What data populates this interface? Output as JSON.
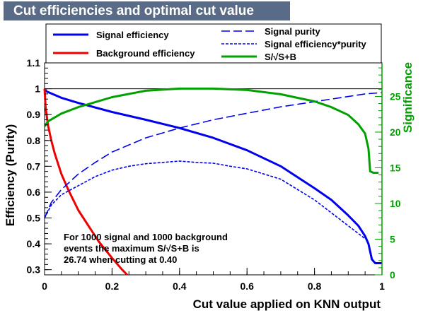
{
  "chart_data": {
    "type": "line",
    "title": "Cut efficiencies and optimal cut value",
    "xlabel": "Cut value applied on KNN output",
    "ylabel": "Efficiency (Purity)",
    "y2label": "Significance",
    "xlim": [
      0,
      1
    ],
    "ylim": [
      0.28,
      1.1
    ],
    "y2lim": [
      0,
      29.7
    ],
    "x_ticks": [
      "0",
      "0.2",
      "0.4",
      "0.6",
      "0.8",
      "1"
    ],
    "y_ticks": [
      "0.3",
      "0.4",
      "0.5",
      "0.6",
      "0.7",
      "0.8",
      "0.9",
      "1",
      "1.1"
    ],
    "y2_ticks": [
      "0",
      "5",
      "10",
      "15",
      "20",
      "25"
    ],
    "reference_line_y": 1.0,
    "legend": [
      {
        "label": "Signal efficiency",
        "style": "solid",
        "color": "#0000ee"
      },
      {
        "label": "Background efficiency",
        "style": "solid",
        "color": "#ee0000"
      },
      {
        "label": "Signal purity",
        "style": "dashed",
        "color": "#0000ee"
      },
      {
        "label": "Signal efficiency*purity",
        "style": "dotted",
        "color": "#0000ee"
      },
      {
        "label": "S/√S+B",
        "style": "solid",
        "color": "#00a000"
      }
    ],
    "series": [
      {
        "name": "Signal efficiency",
        "axis": "left",
        "color": "#0000ee",
        "dash": "solid",
        "x": [
          0,
          0.005,
          0.05,
          0.1,
          0.2,
          0.3,
          0.4,
          0.5,
          0.6,
          0.7,
          0.8,
          0.85,
          0.9,
          0.93,
          0.95,
          0.96,
          0.97,
          0.98,
          1.0
        ],
        "y": [
          1.0,
          0.99,
          0.965,
          0.945,
          0.91,
          0.88,
          0.848,
          0.81,
          0.762,
          0.7,
          0.615,
          0.57,
          0.51,
          0.47,
          0.43,
          0.4,
          0.34,
          0.325,
          0.325
        ]
      },
      {
        "name": "Background efficiency",
        "axis": "left",
        "color": "#ee0000",
        "dash": "solid",
        "x": [
          0,
          0.003,
          0.01,
          0.02,
          0.03,
          0.05,
          0.07,
          0.1,
          0.13,
          0.16,
          0.2,
          0.23,
          0.245
        ],
        "y": [
          1.0,
          0.93,
          0.86,
          0.8,
          0.75,
          0.67,
          0.61,
          0.53,
          0.47,
          0.41,
          0.345,
          0.3,
          0.28
        ]
      },
      {
        "name": "Signal purity",
        "axis": "left",
        "color": "#0000ee",
        "dash": "dashed",
        "x": [
          0,
          0.02,
          0.05,
          0.1,
          0.15,
          0.2,
          0.3,
          0.4,
          0.5,
          0.6,
          0.7,
          0.8,
          0.9,
          0.95,
          1.0
        ],
        "y": [
          0.5,
          0.56,
          0.61,
          0.67,
          0.715,
          0.755,
          0.81,
          0.848,
          0.88,
          0.905,
          0.93,
          0.95,
          0.97,
          0.98,
          0.985
        ]
      },
      {
        "name": "Signal efficiency*purity",
        "axis": "left",
        "color": "#0000ee",
        "dash": "dotted",
        "x": [
          0,
          0.02,
          0.05,
          0.1,
          0.15,
          0.2,
          0.25,
          0.3,
          0.35,
          0.4,
          0.45,
          0.5,
          0.55,
          0.6,
          0.65,
          0.7,
          0.75,
          0.8,
          0.85,
          0.9,
          0.95
        ],
        "y": [
          0.5,
          0.55,
          0.59,
          0.625,
          0.66,
          0.685,
          0.7,
          0.71,
          0.715,
          0.72,
          0.715,
          0.712,
          0.7,
          0.69,
          0.67,
          0.65,
          0.61,
          0.57,
          0.52,
          0.47,
          0.42
        ]
      },
      {
        "name": "S/√S+B",
        "axis": "right",
        "color": "#00a000",
        "dash": "solid",
        "x": [
          0,
          0.01,
          0.05,
          0.1,
          0.15,
          0.2,
          0.3,
          0.4,
          0.5,
          0.6,
          0.7,
          0.75,
          0.8,
          0.85,
          0.9,
          0.93,
          0.95,
          0.96,
          0.965,
          0.975,
          0.99
        ],
        "y": [
          20.8,
          21.5,
          22.6,
          23.5,
          24.2,
          24.9,
          25.8,
          26.1,
          26.1,
          25.9,
          25.3,
          24.8,
          24.3,
          23.5,
          22.4,
          21.1,
          19.8,
          17.7,
          14.5,
          14.3,
          14.3
        ]
      }
    ],
    "annotation": [
      "For 1000 signal and 1000 background",
      "events the maximum S/√S+B is",
      "26.74 when cutting at  0.40"
    ]
  }
}
